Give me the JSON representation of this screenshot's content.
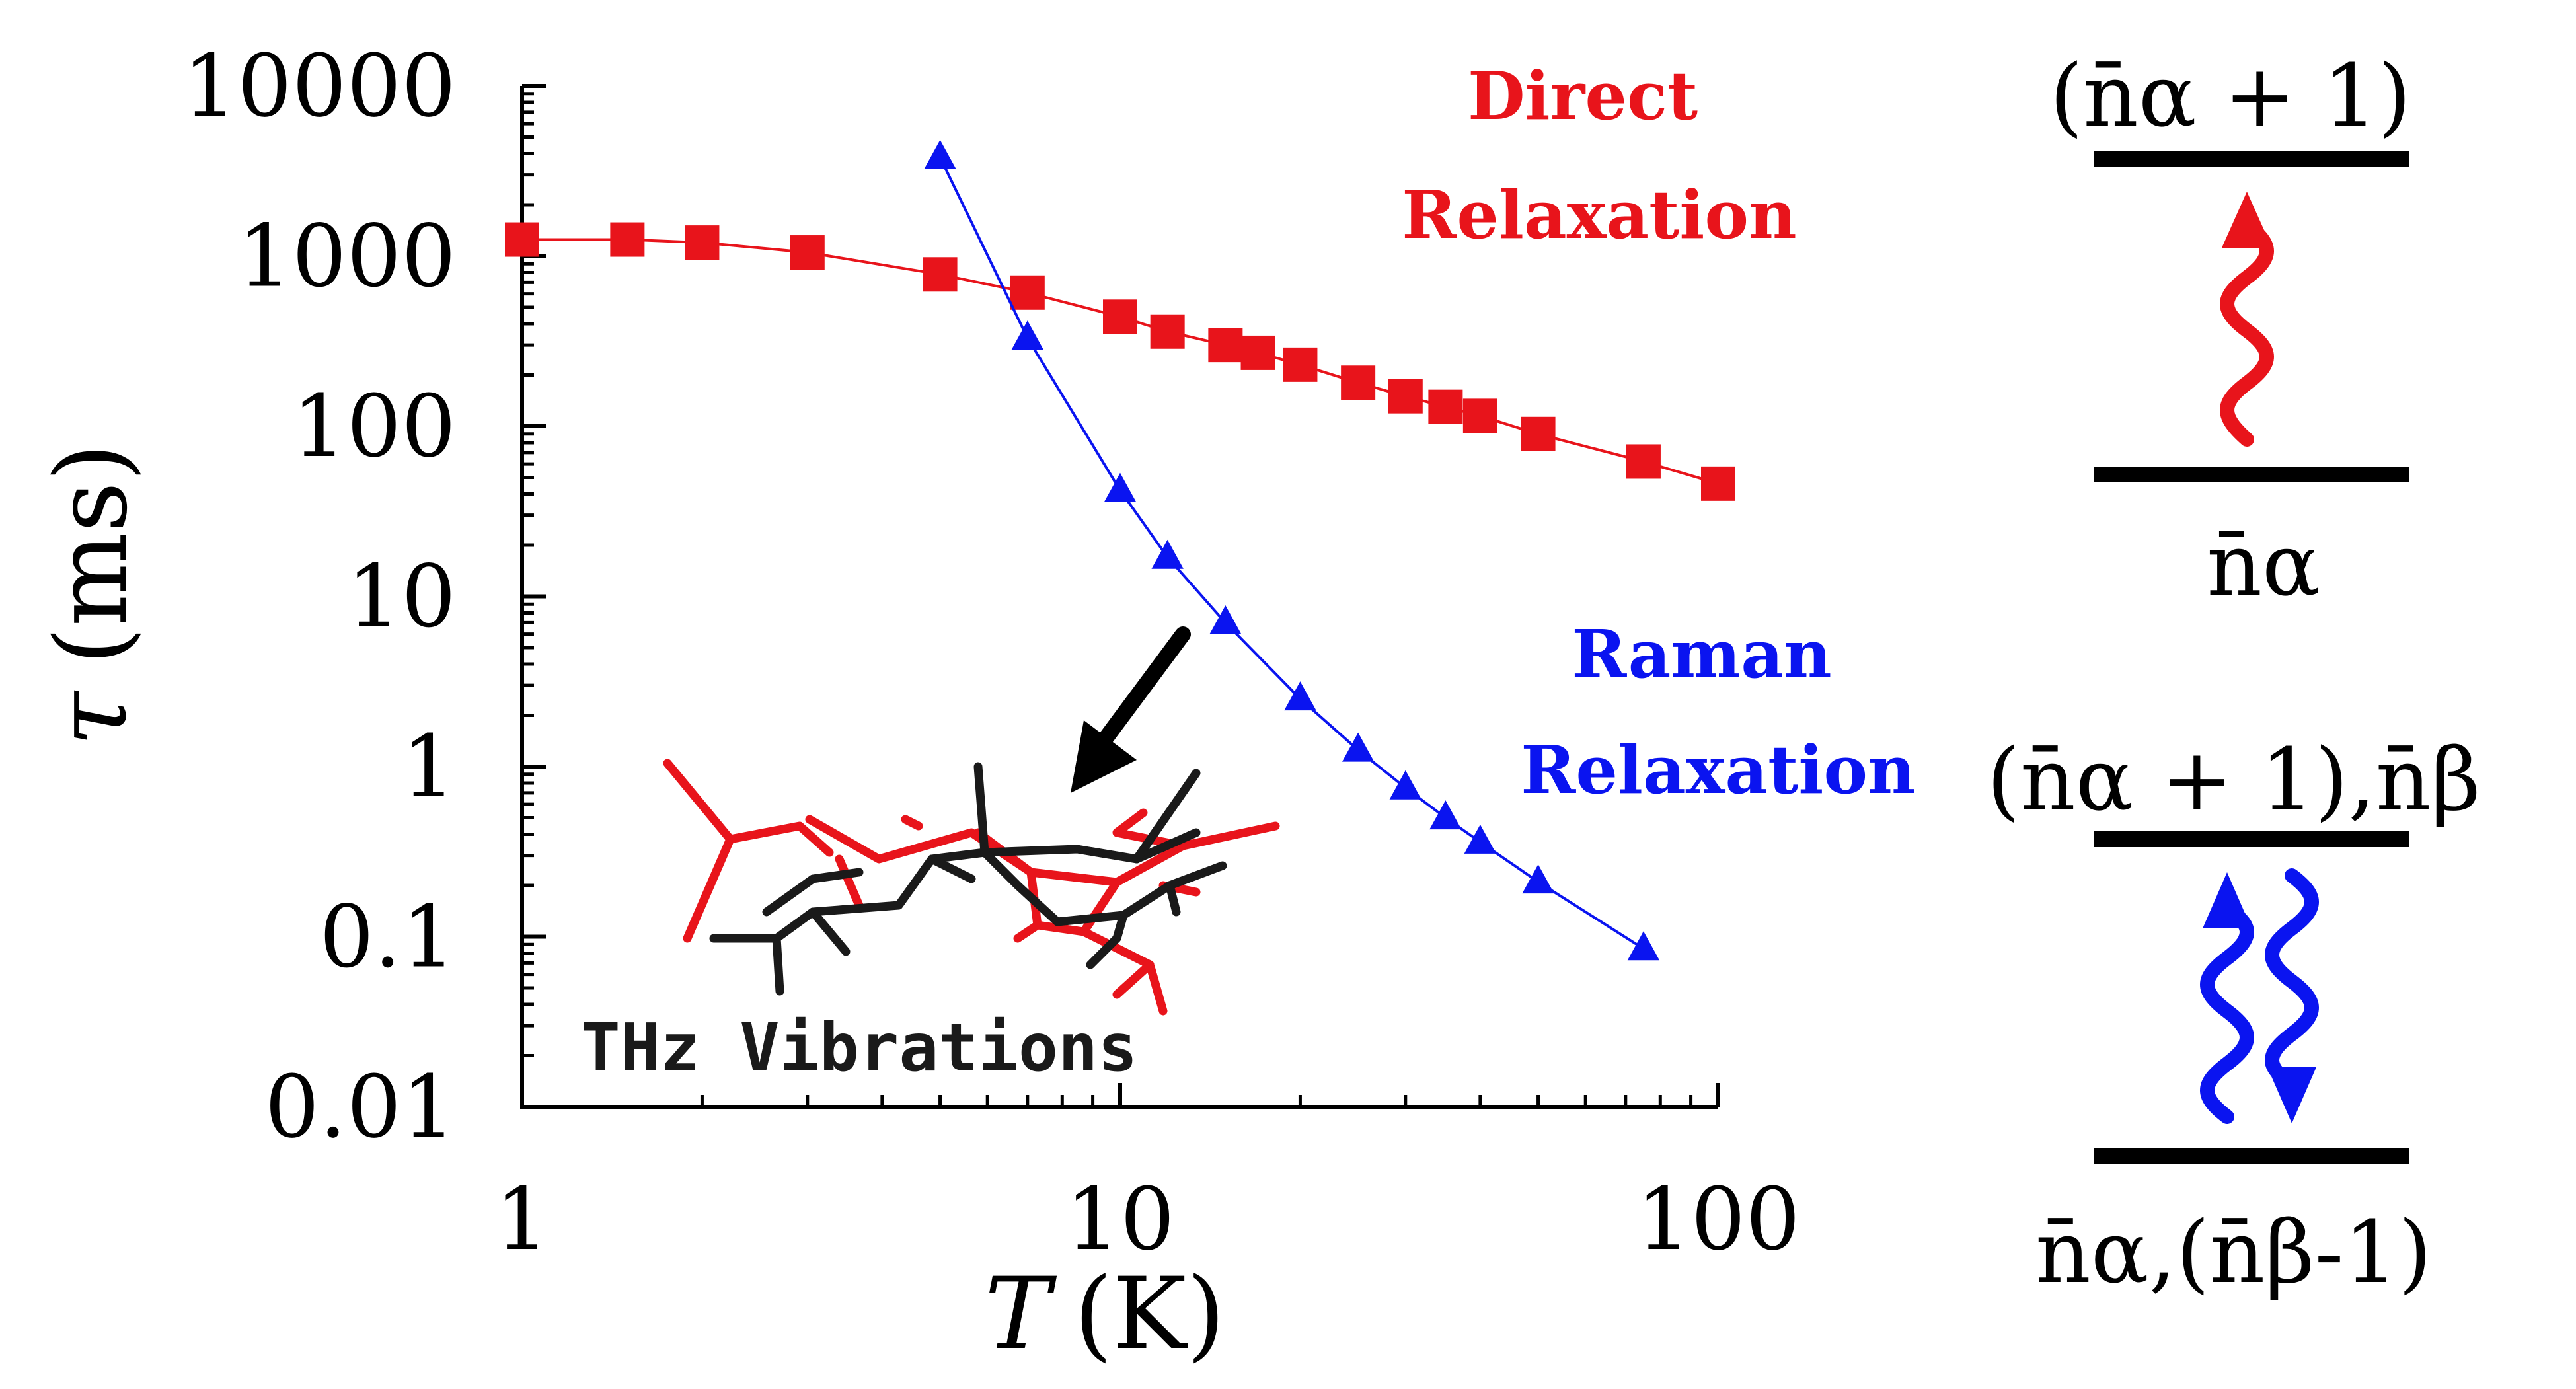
{
  "chart_data": {
    "type": "scatter",
    "x_scale": "log",
    "y_scale": "log",
    "xlim": [
      1,
      100
    ],
    "ylim": [
      0.01,
      10000
    ],
    "xlabel_italic": "T",
    "xlabel_rest": "(K)",
    "ylabel_symbol": "τ",
    "ylabel_rest": "(ms)",
    "xticks": [
      {
        "value": 1,
        "label": "1"
      },
      {
        "value": 10,
        "label": "10"
      },
      {
        "value": 100,
        "label": "100"
      }
    ],
    "yticks": [
      {
        "value": 0.01,
        "label": "0.01"
      },
      {
        "value": 0.1,
        "label": "0.1"
      },
      {
        "value": 1,
        "label": "1"
      },
      {
        "value": 10,
        "label": "10"
      },
      {
        "value": 100,
        "label": "100"
      },
      {
        "value": 1000,
        "label": "1000"
      },
      {
        "value": 10000,
        "label": "10000"
      }
    ],
    "series": [
      {
        "color": "#e8141b",
        "marker": "square",
        "x": [
          1,
          1.5,
          2,
          3,
          5,
          7,
          10,
          12,
          15,
          17,
          20,
          25,
          30,
          35,
          40,
          50,
          75,
          100
        ],
        "y": [
          1250,
          1250,
          1200,
          1050,
          780,
          610,
          440,
          360,
          300,
          270,
          230,
          180,
          150,
          130,
          115,
          90,
          62,
          46
        ]
      },
      {
        "color": "#0a14f0",
        "marker": "triangle",
        "x": [
          5,
          7,
          10,
          12,
          15,
          20,
          25,
          30,
          35,
          40,
          50,
          75
        ],
        "y": [
          3800,
          330,
          42,
          17,
          7,
          2.5,
          1.25,
          0.75,
          0.5,
          0.36,
          0.21,
          0.085
        ]
      }
    ],
    "annotations": {
      "direct_line1": "Direct",
      "direct_line2": "Relaxation",
      "raman_line1": "Raman",
      "raman_line2": "Relaxation",
      "inset_caption": "THz Vibrations"
    }
  },
  "energy_diagram": {
    "direct_upper_label": "(n̄α + 1)",
    "direct_lower_label": "n̄α",
    "raman_upper_label": "(n̄α + 1),n̄β",
    "raman_lower_label": "n̄α,(n̄β-1)"
  },
  "colors": {
    "direct": "#e8141b",
    "raman": "#0a14f0",
    "axis": "#000000",
    "molecule_black": "#1a1a1a",
    "molecule_red": "#e8141b"
  }
}
